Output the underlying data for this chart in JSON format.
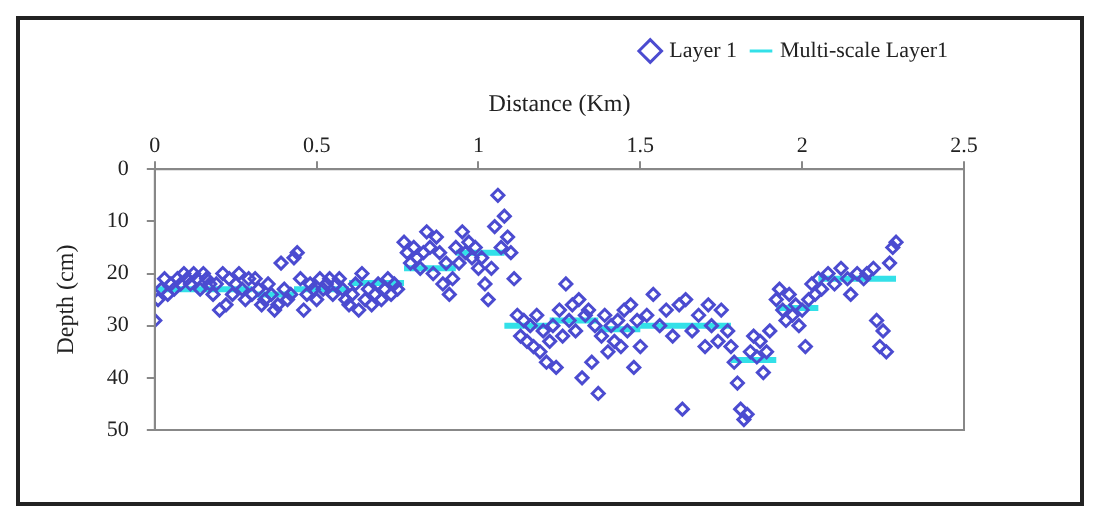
{
  "chart_data": {
    "type": "scatter",
    "xlabel": "Distance (Km)",
    "ylabel": "Depth (cm)",
    "xlim": [
      0,
      2.5
    ],
    "xticks": [
      0,
      0.5,
      1,
      1.5,
      2,
      2.5
    ],
    "ylim": [
      50,
      0
    ],
    "yticks": [
      0,
      10,
      20,
      30,
      40,
      50
    ],
    "grid": false,
    "legend": "top right",
    "series": [
      {
        "name": "Layer 1",
        "type": "scatter",
        "marker": "diamond",
        "color": "#4b4bd0",
        "x": [
          0.0,
          0.01,
          0.02,
          0.03,
          0.04,
          0.05,
          0.06,
          0.07,
          0.08,
          0.09,
          0.1,
          0.11,
          0.12,
          0.13,
          0.14,
          0.15,
          0.16,
          0.17,
          0.18,
          0.19,
          0.2,
          0.21,
          0.22,
          0.23,
          0.24,
          0.25,
          0.26,
          0.27,
          0.28,
          0.29,
          0.3,
          0.31,
          0.32,
          0.33,
          0.34,
          0.35,
          0.36,
          0.37,
          0.38,
          0.39,
          0.4,
          0.41,
          0.42,
          0.43,
          0.44,
          0.45,
          0.46,
          0.47,
          0.48,
          0.49,
          0.5,
          0.51,
          0.52,
          0.53,
          0.54,
          0.55,
          0.56,
          0.57,
          0.58,
          0.59,
          0.6,
          0.61,
          0.62,
          0.63,
          0.64,
          0.65,
          0.66,
          0.67,
          0.68,
          0.69,
          0.7,
          0.71,
          0.72,
          0.73,
          0.74,
          0.75,
          0.77,
          0.78,
          0.79,
          0.8,
          0.81,
          0.82,
          0.83,
          0.84,
          0.85,
          0.86,
          0.87,
          0.88,
          0.89,
          0.9,
          0.91,
          0.92,
          0.93,
          0.94,
          0.95,
          0.96,
          0.97,
          0.98,
          0.99,
          1.0,
          1.01,
          1.02,
          1.03,
          1.04,
          1.05,
          1.06,
          1.07,
          1.08,
          1.09,
          1.1,
          1.11,
          1.12,
          1.13,
          1.14,
          1.15,
          1.16,
          1.17,
          1.18,
          1.19,
          1.2,
          1.21,
          1.22,
          1.23,
          1.24,
          1.25,
          1.26,
          1.27,
          1.28,
          1.29,
          1.3,
          1.31,
          1.32,
          1.33,
          1.34,
          1.35,
          1.36,
          1.37,
          1.38,
          1.39,
          1.4,
          1.41,
          1.42,
          1.43,
          1.44,
          1.45,
          1.46,
          1.47,
          1.48,
          1.49,
          1.5,
          1.52,
          1.54,
          1.56,
          1.58,
          1.6,
          1.62,
          1.63,
          1.64,
          1.66,
          1.68,
          1.7,
          1.71,
          1.72,
          1.74,
          1.75,
          1.77,
          1.78,
          1.79,
          1.8,
          1.81,
          1.82,
          1.83,
          1.84,
          1.85,
          1.86,
          1.87,
          1.88,
          1.89,
          1.9,
          1.92,
          1.93,
          1.94,
          1.95,
          1.96,
          1.97,
          1.98,
          1.99,
          2.0,
          2.01,
          2.02,
          2.03,
          2.04,
          2.05,
          2.06,
          2.08,
          2.1,
          2.12,
          2.14,
          2.15,
          2.17,
          2.19,
          2.2,
          2.22,
          2.23,
          2.24,
          2.25,
          2.26,
          2.27,
          2.28,
          2.29
        ],
        "values": [
          29,
          25,
          23,
          21,
          24,
          22,
          23,
          21,
          22,
          20,
          21,
          22,
          20,
          21,
          23,
          20,
          21,
          22,
          24,
          22,
          27,
          20,
          26,
          21,
          24,
          22,
          20,
          23,
          25,
          21,
          24,
          21,
          23,
          26,
          25,
          22,
          24,
          27,
          26,
          18,
          23,
          25,
          24,
          17,
          16,
          21,
          27,
          24,
          22,
          23,
          25,
          21,
          23,
          22,
          21,
          24,
          22,
          21,
          23,
          25,
          26,
          24,
          22,
          27,
          20,
          25,
          23,
          26,
          24,
          22,
          25,
          23,
          21,
          24,
          22,
          23,
          14,
          16,
          18,
          15,
          17,
          19,
          16,
          12,
          15,
          20,
          13,
          16,
          22,
          18,
          24,
          21,
          15,
          18,
          12,
          16,
          14,
          17,
          15,
          19,
          17,
          22,
          25,
          19,
          11,
          5,
          15,
          9,
          13,
          16,
          21,
          28,
          32,
          29,
          33,
          30,
          34,
          28,
          35,
          31,
          37,
          33,
          30,
          38,
          27,
          32,
          22,
          29,
          26,
          31,
          25,
          40,
          28,
          27,
          37,
          30,
          43,
          32,
          28,
          35,
          30,
          33,
          29,
          34,
          27,
          31,
          26,
          38,
          29,
          34,
          28,
          24,
          30,
          27,
          32,
          26,
          46,
          25,
          31,
          28,
          34,
          26,
          30,
          33,
          27,
          31,
          34,
          37,
          41,
          46,
          48,
          47,
          35,
          32,
          36,
          33,
          39,
          35,
          31,
          25,
          23,
          27,
          29,
          24,
          28,
          26,
          30,
          27,
          34,
          25,
          22,
          24,
          21,
          23,
          20,
          22,
          19,
          21,
          24,
          20,
          21,
          20,
          19,
          29,
          34,
          31,
          35,
          18,
          15,
          14
        ]
      },
      {
        "name": "Multi-scale Layer1",
        "type": "line",
        "marker": "none",
        "line_style": "solid",
        "color": "#33e0e8",
        "x": [
          0.01,
          0.3,
          null,
          0.31,
          0.43,
          null,
          0.43,
          0.6,
          null,
          0.6,
          0.77,
          null,
          0.77,
          0.93,
          null,
          0.93,
          1.08,
          null,
          1.08,
          1.22,
          null,
          1.22,
          1.37,
          null,
          1.37,
          1.5,
          null,
          1.5,
          1.78,
          null,
          1.78,
          1.92,
          null,
          1.92,
          2.05,
          null,
          2.05,
          2.29
        ],
        "values": [
          23,
          23,
          null,
          24,
          24,
          null,
          23,
          23,
          null,
          21.8,
          21.8,
          null,
          19,
          19,
          null,
          16,
          16,
          null,
          30,
          30,
          null,
          29,
          29,
          null,
          30.7,
          30.7,
          null,
          30,
          30,
          null,
          36.6,
          36.6,
          null,
          26.6,
          26.6,
          null,
          21,
          21
        ]
      }
    ]
  }
}
